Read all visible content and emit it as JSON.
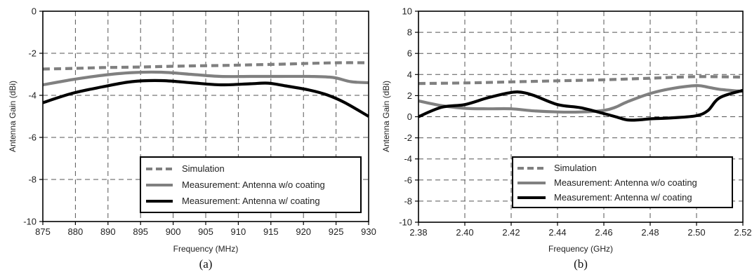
{
  "chart_data": [
    {
      "type": "line",
      "caption": "(a)",
      "xlabel": "Frequency (MHz)",
      "ylabel": "Antenna Gain (dBi)",
      "xlim": [
        875,
        930
      ],
      "ylim": [
        -10,
        0
      ],
      "x_ticks": [
        "875",
        "880",
        "890",
        "895",
        "900",
        "905",
        "910",
        "915",
        "920",
        "925",
        "930"
      ],
      "y_ticks": [
        "0",
        "-2",
        "-4",
        "-6",
        "-8",
        "-10"
      ],
      "grid": true,
      "legend_position": "bottom-right",
      "series": [
        {
          "name": "Simulation",
          "color": "#808080",
          "style": "dashed",
          "points": [
            [
              875,
              -2.75
            ],
            [
              880,
              -2.72
            ],
            [
              885,
              -2.68
            ],
            [
              890,
              -2.66
            ],
            [
              895,
              -2.63
            ],
            [
              900,
              -2.6
            ],
            [
              905,
              -2.58
            ],
            [
              910,
              -2.55
            ],
            [
              915,
              -2.52
            ],
            [
              920,
              -2.48
            ],
            [
              925,
              -2.45
            ],
            [
              930,
              -2.45
            ]
          ]
        },
        {
          "name": "Measurement: Antenna w/o coating",
          "color": "#808080",
          "style": "solid",
          "points": [
            [
              875,
              -3.5
            ],
            [
              880,
              -3.25
            ],
            [
              885,
              -3.05
            ],
            [
              890,
              -2.92
            ],
            [
              895,
              -2.9
            ],
            [
              900,
              -3.0
            ],
            [
              905,
              -3.1
            ],
            [
              910,
              -3.1
            ],
            [
              915,
              -3.1
            ],
            [
              920,
              -3.1
            ],
            [
              924,
              -3.15
            ],
            [
              927,
              -3.35
            ],
            [
              930,
              -3.4
            ]
          ]
        },
        {
          "name": "Measurement: Antenna w/ coating",
          "color": "#000000",
          "style": "solid",
          "points": [
            [
              875,
              -4.35
            ],
            [
              880,
              -3.9
            ],
            [
              885,
              -3.6
            ],
            [
              890,
              -3.35
            ],
            [
              895,
              -3.3
            ],
            [
              900,
              -3.4
            ],
            [
              905,
              -3.5
            ],
            [
              910,
              -3.45
            ],
            [
              913,
              -3.42
            ],
            [
              916,
              -3.55
            ],
            [
              920,
              -3.75
            ],
            [
              923,
              -3.98
            ],
            [
              926,
              -4.35
            ],
            [
              930,
              -5.0
            ]
          ]
        }
      ]
    },
    {
      "type": "line",
      "caption": "(b)",
      "xlabel": "Frequency (GHz)",
      "ylabel": "Antenna Gain (dBi)",
      "xlim": [
        2.38,
        2.52
      ],
      "ylim": [
        -10,
        10
      ],
      "x_ticks": [
        "2.38",
        "2.40",
        "2.42",
        "2.44",
        "2.46",
        "2.48",
        "2.50",
        "2.52"
      ],
      "y_ticks": [
        "10",
        "8",
        "6",
        "4",
        "2",
        "0",
        "-2",
        "-4",
        "-6",
        "-8",
        "-10"
      ],
      "grid": true,
      "legend_position": "bottom-right",
      "series": [
        {
          "name": "Simulation",
          "color": "#808080",
          "style": "dashed",
          "points": [
            [
              2.38,
              3.15
            ],
            [
              2.4,
              3.2
            ],
            [
              2.42,
              3.3
            ],
            [
              2.44,
              3.4
            ],
            [
              2.46,
              3.5
            ],
            [
              2.48,
              3.65
            ],
            [
              2.5,
              3.8
            ],
            [
              2.52,
              3.75
            ]
          ]
        },
        {
          "name": "Measurement: Antenna w/o coating",
          "color": "#808080",
          "style": "solid",
          "points": [
            [
              2.38,
              1.5
            ],
            [
              2.39,
              1.05
            ],
            [
              2.4,
              0.8
            ],
            [
              2.41,
              0.75
            ],
            [
              2.42,
              0.75
            ],
            [
              2.43,
              0.55
            ],
            [
              2.44,
              0.45
            ],
            [
              2.45,
              0.45
            ],
            [
              2.46,
              0.6
            ],
            [
              2.465,
              0.9
            ],
            [
              2.47,
              1.4
            ],
            [
              2.48,
              2.2
            ],
            [
              2.49,
              2.7
            ],
            [
              2.5,
              2.95
            ],
            [
              2.505,
              2.8
            ],
            [
              2.51,
              2.6
            ],
            [
              2.52,
              2.4
            ]
          ]
        },
        {
          "name": "Measurement: Antenna w/ coating",
          "color": "#000000",
          "style": "solid",
          "points": [
            [
              2.38,
              0.0
            ],
            [
              2.39,
              0.9
            ],
            [
              2.4,
              1.15
            ],
            [
              2.41,
              1.8
            ],
            [
              2.42,
              2.3
            ],
            [
              2.425,
              2.3
            ],
            [
              2.43,
              2.0
            ],
            [
              2.44,
              1.15
            ],
            [
              2.45,
              0.85
            ],
            [
              2.46,
              0.3
            ],
            [
              2.465,
              0.0
            ],
            [
              2.47,
              -0.3
            ],
            [
              2.475,
              -0.3
            ],
            [
              2.48,
              -0.2
            ],
            [
              2.49,
              -0.1
            ],
            [
              2.5,
              0.1
            ],
            [
              2.505,
              0.6
            ],
            [
              2.51,
              1.8
            ],
            [
              2.52,
              2.5
            ]
          ]
        }
      ]
    }
  ]
}
